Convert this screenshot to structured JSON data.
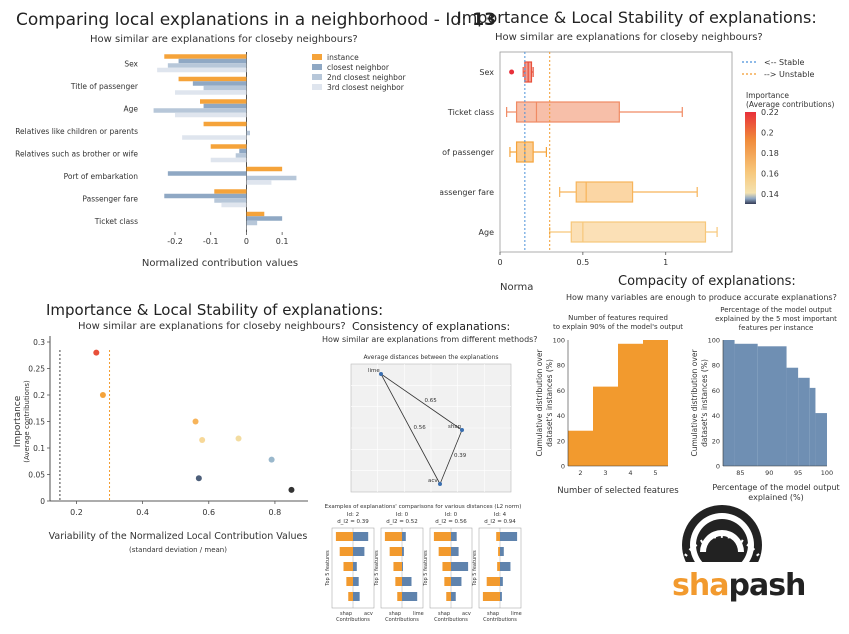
{
  "panel1": {
    "title_prefix": "Comparing local explanations in a neighborhood - Id: ",
    "title_id": "13",
    "subtitle": "How similar are explanations for closeby neighbours?",
    "xlabel": "Normalized contribution values"
  },
  "panel2": {
    "title": "Importance & Local Stability of explanations:",
    "subtitle": "How similar are explanations for closeby neighbours?",
    "xlabel_partial": "Norma",
    "colorbar_title_line1": "Importance",
    "colorbar_title_line2": "(Average contributions)"
  },
  "panel3": {
    "title": "Importance & Local Stability of explanations:",
    "subtitle": "How similar are explanations for closeby neighbours?",
    "xlabel": "Variability of the Normalized Local Contribution Values",
    "xlabel_sub": "(standard deviation / mean)",
    "ylabel_line1": "Importance",
    "ylabel_line2": "(Average contributions)"
  },
  "panel4": {
    "title": "Consistency of explanations:",
    "subtitle": "How similar are explanations from different methods?",
    "inner_title": "Average distances between the explanations",
    "comparisons_title": "Examples of explanations' comparisons for various distances (L2 norm)",
    "ylabel": "Top 5 features",
    "xlabel": "Contributions"
  },
  "panel5": {
    "title": "Compacity of explanations:",
    "subtitle": "How many variables are enough to produce accurate explanations?",
    "left_title_line1": "Number of features required",
    "left_title_line2": "to explain 90% of the model's output",
    "left_xlabel": "Number of selected features",
    "left_ylabel_line1": "Cumulative distribution over",
    "left_ylabel_line2": "dataset's instances (%)",
    "right_title_line1": "Percentage of the model output",
    "right_title_line2": "explained by the 5 most important",
    "right_title_line3": "features per instance",
    "right_xlabel_line1": "Percentage of the model output",
    "right_xlabel_line2": "explained (%)",
    "right_ylabel_line1": "Cumulative distribution over",
    "right_ylabel_line2": "dataset's instances (%)"
  },
  "logo": {
    "text_sha": "sha",
    "text_pash": "pash",
    "color_sha": "#f29a2e",
    "color_pash": "#222222"
  },
  "chart_data": [
    {
      "type": "bar",
      "orientation": "horizontal",
      "categories": [
        "Sex",
        "Title of passenger",
        "Age",
        "Relatives like children or parents",
        "Relatives such as brother or wife",
        "Port of embarkation",
        "Passenger fare",
        "Ticket class"
      ],
      "series": [
        {
          "name": "instance",
          "color": "#f5a33a",
          "values": [
            -0.23,
            -0.19,
            -0.13,
            -0.12,
            -0.1,
            0.1,
            -0.09,
            0.05
          ]
        },
        {
          "name": "closest neighbor",
          "color": "#8fa8c4",
          "values": [
            -0.19,
            -0.15,
            -0.12,
            0.0,
            -0.02,
            -0.22,
            -0.23,
            0.1
          ]
        },
        {
          "name": "2nd closest neighbor",
          "color": "#b7c7d9",
          "values": [
            -0.22,
            -0.12,
            -0.26,
            0.01,
            -0.03,
            0.14,
            -0.09,
            0.03
          ]
        },
        {
          "name": "3rd closest neighbor",
          "color": "#dfe5ee",
          "values": [
            -0.25,
            -0.2,
            -0.2,
            -0.18,
            -0.1,
            0.07,
            -0.07,
            0.0
          ]
        }
      ],
      "xlabel": "Normalized contribution values",
      "xticks": [
        -0.2,
        -0.1,
        0,
        0.1
      ],
      "xlim": [
        -0.27,
        0.15
      ],
      "legend_position": "right"
    },
    {
      "type": "box",
      "orientation": "horizontal",
      "categories": [
        "Sex",
        "Ticket class",
        "Title of passenger",
        "Passenger fare",
        "Age"
      ],
      "boxes": [
        {
          "whisker_low": 0.14,
          "q1": 0.15,
          "median": 0.17,
          "q3": 0.19,
          "whisker_high": 0.2,
          "outliers": [
            0.07
          ],
          "color": "#e8503a"
        },
        {
          "whisker_low": 0.04,
          "q1": 0.1,
          "median": 0.22,
          "q3": 0.72,
          "whisker_high": 1.1,
          "outliers": [],
          "color": "#f08a63"
        },
        {
          "whisker_low": 0.06,
          "q1": 0.1,
          "median": 0.15,
          "q3": 0.2,
          "whisker_high": 0.28,
          "outliers": [],
          "color": "#f5a33a"
        },
        {
          "whisker_low": 0.36,
          "q1": 0.46,
          "median": 0.52,
          "q3": 0.8,
          "whisker_high": 1.19,
          "outliers": [],
          "color": "#f7b45a"
        },
        {
          "whisker_low": 0.3,
          "q1": 0.43,
          "median": 0.5,
          "q3": 1.24,
          "whisker_high": 1.31,
          "outliers": [],
          "color": "#f7c77a"
        }
      ],
      "stable_line": 0.15,
      "unstable_line": 0.3,
      "legend": [
        "<-- Stable",
        "--> Unstable"
      ],
      "legend_colors": [
        "#4a90d9",
        "#f29a2e"
      ],
      "xticks": [
        0,
        0.5,
        1
      ],
      "xlim": [
        0,
        1.4
      ],
      "colorbar": {
        "min": 0.13,
        "max": 0.22,
        "ticks": [
          0.22,
          0.2,
          0.18,
          0.16,
          0.14
        ]
      }
    },
    {
      "type": "scatter",
      "points": [
        {
          "x": 0.26,
          "y": 0.28,
          "color": "#e8503a"
        },
        {
          "x": 0.28,
          "y": 0.2,
          "color": "#f5a33a"
        },
        {
          "x": 0.56,
          "y": 0.15,
          "color": "#f7b45a"
        },
        {
          "x": 0.58,
          "y": 0.115,
          "color": "#f7d898"
        },
        {
          "x": 0.69,
          "y": 0.118,
          "color": "#f3dca0"
        },
        {
          "x": 0.79,
          "y": 0.078,
          "color": "#9ab8cc"
        },
        {
          "x": 0.57,
          "y": 0.043,
          "color": "#4d5f7a"
        },
        {
          "x": 0.85,
          "y": 0.021,
          "color": "#333333"
        }
      ],
      "stable_line": 0.15,
      "unstable_line": 0.3,
      "xticks": [
        0.2,
        0.4,
        0.6,
        0.8
      ],
      "yticks": [
        0,
        0.05,
        0.1,
        0.15,
        0.2,
        0.25,
        0.3
      ],
      "xlim": [
        0.12,
        0.9
      ],
      "ylim": [
        0,
        0.3
      ]
    },
    {
      "type": "network",
      "nodes": [
        "lime",
        "shap",
        "acv"
      ],
      "edges": [
        {
          "from": "lime",
          "to": "shap",
          "label": "0.65"
        },
        {
          "from": "lime",
          "to": "acv",
          "label": "0.56"
        },
        {
          "from": "shap",
          "to": "acv",
          "label": "0.39"
        }
      ],
      "comparisons": [
        {
          "id_label": "Id: 2",
          "distance_label": "d_l2 = 0.39",
          "left": "shap",
          "right": "acv",
          "left_values": [
            0.9,
            0.7,
            0.5,
            0.35,
            0.25
          ],
          "right_values": [
            0.8,
            0.6,
            0.2,
            0.3,
            0.35
          ]
        },
        {
          "id_label": "Id: 0",
          "distance_label": "d_l2 = 0.52",
          "left": "shap",
          "right": "lime",
          "left_values": [
            0.9,
            0.65,
            0.45,
            0.35,
            0.25
          ],
          "right_values": [
            0.2,
            0.1,
            0.05,
            0.5,
            0.8
          ]
        },
        {
          "id_label": "Id: 0",
          "distance_label": "d_l2 = 0.56",
          "left": "shap",
          "right": "acv",
          "left_values": [
            0.9,
            0.65,
            0.45,
            0.35,
            0.25
          ],
          "right_values": [
            0.3,
            0.4,
            0.9,
            0.55,
            0.25
          ]
        },
        {
          "id_label": "Id: 4",
          "distance_label": "d_l2 = 0.94",
          "left": "shap",
          "right": "lime",
          "left_values": [
            0.2,
            0.1,
            0.15,
            0.7,
            0.9
          ],
          "right_values": [
            0.9,
            0.2,
            0.55,
            0.15,
            0.1
          ]
        }
      ]
    },
    {
      "type": "histogram",
      "name": "Number of selected features",
      "color": "#f29a2e",
      "bins": [
        {
          "x0": 1.5,
          "x1": 2.5,
          "y": 28
        },
        {
          "x0": 2.5,
          "x1": 3.5,
          "y": 63
        },
        {
          "x0": 3.5,
          "x1": 4.5,
          "y": 97
        },
        {
          "x0": 4.5,
          "x1": 5.5,
          "y": 100
        }
      ],
      "xticks": [
        2,
        3,
        4,
        5
      ],
      "yticks": [
        0,
        20,
        40,
        60,
        80,
        100
      ],
      "xlim": [
        1.5,
        5.5
      ],
      "ylim": [
        0,
        100
      ]
    },
    {
      "type": "histogram",
      "name": "Percentage of the model output explained",
      "color": "#6f8fb3",
      "bins": [
        {
          "x0": 82,
          "x1": 84,
          "y": 100
        },
        {
          "x0": 84,
          "x1": 88,
          "y": 97
        },
        {
          "x0": 88,
          "x1": 93,
          "y": 95
        },
        {
          "x0": 93,
          "x1": 95,
          "y": 78
        },
        {
          "x0": 95,
          "x1": 97,
          "y": 70
        },
        {
          "x0": 97,
          "x1": 98,
          "y": 62
        },
        {
          "x0": 98,
          "x1": 100,
          "y": 42
        }
      ],
      "xticks": [
        85,
        90,
        95,
        100
      ],
      "yticks": [
        0,
        20,
        40,
        60,
        80,
        100
      ],
      "xlim": [
        82,
        100
      ],
      "ylim": [
        0,
        100
      ]
    }
  ]
}
